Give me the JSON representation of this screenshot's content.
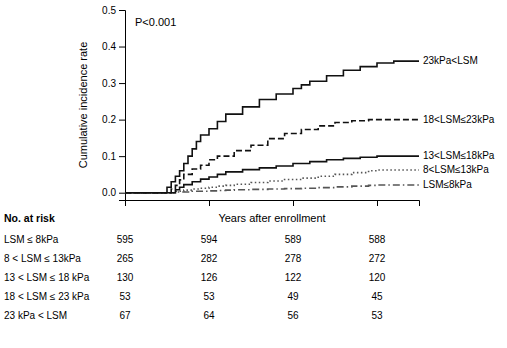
{
  "chart_data": {
    "type": "step",
    "ylabel": "Cumulative incidence rate",
    "xlabel": "Years after enrollment",
    "xlim": [
      0,
      3.5
    ],
    "ylim": [
      -0.02,
      0.5
    ],
    "xticks": [
      0,
      1,
      2,
      3
    ],
    "yticks": [
      {
        "value": 0.0,
        "label": "0.0"
      },
      0.1,
      0.2,
      0.3,
      0.4,
      0.5
    ],
    "tick_labels": "y",
    "grid": false,
    "annotations": [
      "P<0.001"
    ],
    "series": [
      {
        "name": "LSM≤8kPa",
        "color": "#555555",
        "line_style": "dashdot",
        "x": [
          0,
          0.5,
          0.6,
          0.7,
          0.8,
          0.9,
          1.0,
          1.1,
          1.2,
          1.3,
          1.5,
          1.7,
          1.9,
          2.1,
          2.3,
          2.5,
          2.7,
          2.9,
          3.0,
          3.5
        ],
        "values": [
          0,
          0,
          0.002,
          0.002,
          0.004,
          0.004,
          0.005,
          0.006,
          0.007,
          0.008,
          0.009,
          0.01,
          0.011,
          0.012,
          0.014,
          0.016,
          0.018,
          0.02,
          0.021,
          0.021
        ]
      },
      {
        "name": "8<LSM≤13kPa",
        "color": "#555555",
        "line_style": "dotted",
        "x": [
          0,
          0.5,
          0.6,
          0.7,
          0.8,
          0.9,
          1.0,
          1.1,
          1.2,
          1.3,
          1.5,
          1.7,
          1.9,
          2.1,
          2.3,
          2.5,
          2.7,
          2.9,
          3.0,
          3.5
        ],
        "values": [
          0,
          0,
          0.004,
          0.007,
          0.01,
          0.012,
          0.015,
          0.018,
          0.02,
          0.023,
          0.028,
          0.032,
          0.036,
          0.04,
          0.045,
          0.05,
          0.055,
          0.06,
          0.062,
          0.062
        ]
      },
      {
        "name": "13<LSM≤18kPa",
        "color": "#111111",
        "line_style": "solid",
        "x": [
          0,
          0.5,
          0.6,
          0.65,
          0.7,
          0.8,
          0.9,
          1.0,
          1.1,
          1.2,
          1.4,
          1.6,
          1.8,
          2.0,
          2.2,
          2.4,
          2.6,
          2.8,
          3.0,
          3.5
        ],
        "values": [
          0,
          0,
          0.008,
          0.015,
          0.022,
          0.03,
          0.037,
          0.043,
          0.05,
          0.057,
          0.063,
          0.068,
          0.073,
          0.08,
          0.085,
          0.09,
          0.094,
          0.097,
          0.1,
          0.1
        ]
      },
      {
        "name": "18<LSM≤23kPa",
        "color": "#111111",
        "line_style": "dashed",
        "x": [
          0,
          0.5,
          0.55,
          0.6,
          0.65,
          0.7,
          0.8,
          0.9,
          1.0,
          1.1,
          1.3,
          1.5,
          1.7,
          1.9,
          2.1,
          2.3,
          2.5,
          2.7,
          2.9,
          3.0,
          3.5
        ],
        "values": [
          0,
          0,
          0.01,
          0.02,
          0.035,
          0.05,
          0.065,
          0.075,
          0.09,
          0.1,
          0.115,
          0.13,
          0.148,
          0.162,
          0.173,
          0.183,
          0.192,
          0.197,
          0.2,
          0.2,
          0.2
        ]
      },
      {
        "name": "23kPa<LSM",
        "color": "#111111",
        "line_style": "solid",
        "x": [
          0,
          0.4,
          0.5,
          0.55,
          0.6,
          0.65,
          0.7,
          0.75,
          0.8,
          0.85,
          0.9,
          1.0,
          1.1,
          1.2,
          1.4,
          1.6,
          1.8,
          2.0,
          2.1,
          2.2,
          2.4,
          2.6,
          2.8,
          3.0,
          3.2,
          3.5
        ],
        "values": [
          0,
          0,
          0.015,
          0.03,
          0.045,
          0.06,
          0.08,
          0.1,
          0.12,
          0.14,
          0.158,
          0.175,
          0.195,
          0.215,
          0.235,
          0.255,
          0.27,
          0.285,
          0.295,
          0.305,
          0.32,
          0.335,
          0.345,
          0.355,
          0.36,
          0.36
        ]
      }
    ],
    "risk_table": {
      "header": "No. at risk",
      "timepoints": [
        0,
        1,
        2,
        3
      ],
      "rows": [
        {
          "label": "LSM ≤ 8kPa",
          "values": [
            595,
            594,
            589,
            588
          ]
        },
        {
          "label": "8 < LSM ≤ 13kPa",
          "values": [
            265,
            282,
            278,
            272
          ]
        },
        {
          "label": "13 < LSM ≤ 18 kPa",
          "values": [
            130,
            126,
            122,
            120
          ]
        },
        {
          "label": "18 < LSM ≤ 23 kPa",
          "values": [
            53,
            53,
            49,
            45
          ]
        },
        {
          "label": "23 kPa < LSM",
          "values": [
            67,
            64,
            56,
            53
          ]
        }
      ]
    }
  }
}
